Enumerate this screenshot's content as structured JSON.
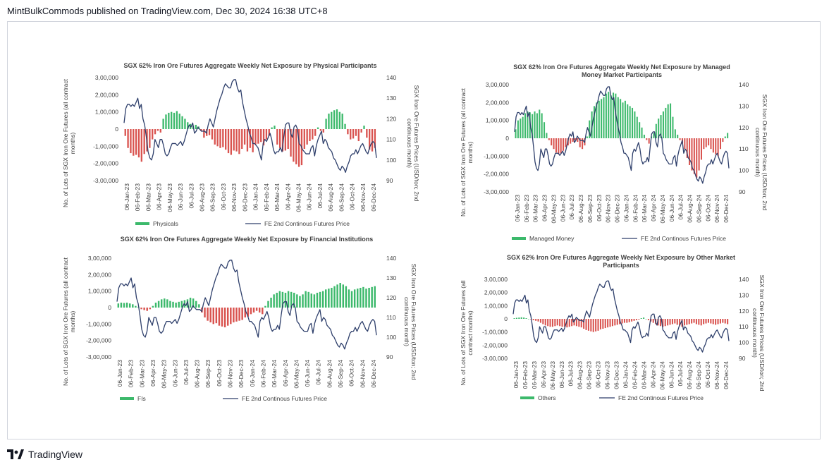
{
  "header": {
    "text": "MintBulkCommods published on TradingView.com, Dec 30, 2024 16:38 UTC+8"
  },
  "footer": {
    "brand": "TradingView",
    "logo_icon": "tradingview-logo-icon"
  },
  "colors": {
    "positive": "#3cb96b",
    "negative": "#d9534f",
    "line": "#2e3f6b",
    "text": "#404040"
  },
  "chart_data": [
    {
      "type": "bar+line",
      "title": [
        "SGX 62% Iron Ore Futures Aggregate Weekly Net Exposure by Physical Participants"
      ],
      "ylabel": [
        "No. of Lots of SGX Iron Ore Futures (all contract",
        "months)"
      ],
      "y2label": [
        "SGX Iron Ore Futures Prices (USD/ton; 2nd",
        "continuous month)"
      ],
      "yticks": [
        "3,00,000",
        "2,00,000",
        "1,00,000",
        "0",
        "-1,00,000",
        "-2,00,000",
        "-3,00,000"
      ],
      "ylim": [
        -300000,
        300000
      ],
      "y2ticks": [
        "140",
        "130",
        "120",
        "110",
        "100",
        "90"
      ],
      "y2lim": [
        90,
        140
      ],
      "xticks": [
        "06-Jan-23",
        "06-Feb-23",
        "06-Mar-23",
        "06-Apr-23",
        "06-May-23",
        "06-Jun-23",
        "06-Jul-23",
        "06-Aug-23",
        "06-Sep-23",
        "06-Oct-23",
        "06-Nov-23",
        "06-Dec-23",
        "06-Jan-24",
        "06-Feb-24",
        "06-Mar-24",
        "06-Apr-24",
        "06-May-24",
        "06-Jun-24",
        "06-Jul-24",
        "06-Aug-24",
        "06-Sep-24",
        "06-Oct-24",
        "06-Nov-24",
        "06-Dec-24"
      ],
      "legend": [
        {
          "name": "Physicals",
          "kind": "bar"
        },
        {
          "name": "FE 2nd Continous Futures Price",
          "kind": "line"
        }
      ],
      "bars": [
        -40000,
        -110000,
        -140000,
        -155000,
        -150000,
        -165000,
        -190000,
        -145000,
        -130000,
        -110000,
        -60000,
        -30000,
        -10000,
        -20000,
        60000,
        85000,
        95000,
        100000,
        95000,
        105000,
        90000,
        75000,
        60000,
        40000,
        30000,
        20000,
        25000,
        15000,
        -10000,
        -50000,
        -40000,
        -35000,
        -60000,
        -90000,
        -100000,
        -110000,
        -105000,
        -120000,
        -140000,
        -150000,
        -125000,
        -130000,
        -145000,
        -115000,
        -90000,
        -130000,
        -110000,
        -135000,
        -90000,
        -85000,
        -75000,
        -95000,
        -60000,
        -40000,
        10000,
        20000,
        -90000,
        -110000,
        -130000,
        -125000,
        -115000,
        -160000,
        -190000,
        -205000,
        -220000,
        -210000,
        -115000,
        -90000,
        -70000,
        -60000,
        -40000,
        10000,
        -10000,
        -20000,
        60000,
        90000,
        100000,
        110000,
        115000,
        100000,
        90000,
        30000,
        -30000,
        -60000,
        -55000,
        -40000,
        -70000,
        -20000,
        20000,
        -50000,
        -120000,
        -130000,
        -110000
      ],
      "price": [
        118,
        125,
        127,
        127,
        126,
        127,
        126,
        128,
        130,
        125,
        127,
        120,
        117,
        111,
        104,
        101,
        100,
        103,
        110,
        108,
        106,
        110,
        110,
        107,
        103,
        102,
        103,
        106,
        108,
        108,
        108,
        107,
        108,
        109,
        107,
        109,
        112,
        115,
        117,
        116,
        118,
        113,
        114,
        116,
        115,
        114,
        114,
        114,
        113,
        117,
        120,
        118,
        116,
        120,
        124,
        127,
        130,
        132,
        135,
        137,
        136,
        135,
        135,
        138,
        139,
        139,
        135,
        133,
        134,
        128,
        124,
        120,
        117,
        113,
        111,
        108,
        108,
        107,
        106,
        103,
        100,
        108,
        110,
        109,
        111,
        113,
        110,
        105,
        103,
        104,
        104,
        106,
        104,
        111,
        117,
        118,
        118,
        113,
        111,
        116,
        117,
        115,
        108,
        107,
        105,
        104,
        103,
        103,
        103,
        106,
        107,
        102,
        107,
        110,
        112,
        114,
        108,
        110,
        109,
        106,
        105,
        104,
        101,
        100,
        98,
        96,
        95,
        97,
        96,
        94,
        97,
        99,
        102,
        103,
        103,
        105,
        103,
        105,
        107,
        108,
        106,
        104,
        103,
        106,
        108,
        109,
        108,
        101
      ]
    },
    {
      "type": "bar+line",
      "title": [
        "SGX 62% Iron Ore Futures Aggregate Weekly Net Exposure by Managed",
        "Money Market Participants"
      ],
      "ylabel": [
        "No. of Lots of SGX Iron Ore Futures (all contract",
        "months)"
      ],
      "y2label": [
        "SGX Iron Ore Futures Prices (USD/ton; 2nd",
        "continuous month)"
      ],
      "yticks": [
        "3,00,000",
        "2,00,000",
        "1,00,000",
        "0",
        "-1,00,000",
        "-2,00,000",
        "-3,00,000"
      ],
      "ylim": [
        -300000,
        300000
      ],
      "y2ticks": [
        "140",
        "130",
        "120",
        "110",
        "100",
        "90"
      ],
      "y2lim": [
        90,
        140
      ],
      "xticks": [
        "06-Jan-23",
        "06-Feb-23",
        "06-Mar-23",
        "06-Apr-23",
        "06-May-23",
        "06-Jun-23",
        "06-Jul-23",
        "06-Aug-23",
        "06-Sep-23",
        "06-Oct-23",
        "06-Nov-23",
        "06-Dec-23",
        "06-Jan-24",
        "06-Feb-24",
        "06-Mar-24",
        "06-Apr-24",
        "06-May-24",
        "06-Jun-24",
        "06-Jul-24",
        "06-Aug-24",
        "06-Sep-24",
        "06-Oct-24",
        "06-Nov-24",
        "06-Dec-24"
      ],
      "legend": [
        {
          "name": "Managed Money",
          "kind": "bar"
        },
        {
          "name": "FE 2nd Continous Futures Price",
          "kind": "line"
        }
      ],
      "bars": [
        50000,
        100000,
        110000,
        120000,
        140000,
        150000,
        145000,
        135000,
        150000,
        140000,
        160000,
        140000,
        90000,
        30000,
        -10000,
        -40000,
        -60000,
        -80000,
        -90000,
        -85000,
        -70000,
        -50000,
        -40000,
        -30000,
        -20000,
        -10000,
        -20000,
        -50000,
        -60000,
        -40000,
        10000,
        100000,
        150000,
        180000,
        200000,
        210000,
        220000,
        230000,
        250000,
        260000,
        240000,
        255000,
        250000,
        230000,
        220000,
        200000,
        210000,
        190000,
        180000,
        170000,
        150000,
        120000,
        90000,
        60000,
        20000,
        -10000,
        -30000,
        10000,
        30000,
        80000,
        110000,
        130000,
        150000,
        170000,
        190000,
        195000,
        120000,
        50000,
        20000,
        -10000,
        -30000,
        -60000,
        -110000,
        -150000,
        -180000,
        -200000,
        -220000,
        -180000,
        -120000,
        -60000,
        -50000,
        -40000,
        -60000,
        -80000,
        -90000,
        -100000,
        -60000,
        -20000,
        10000,
        30000
      ],
      "price": [
        118,
        125,
        127,
        127,
        126,
        127,
        126,
        128,
        130,
        125,
        127,
        120,
        117,
        111,
        104,
        101,
        100,
        103,
        110,
        108,
        106,
        110,
        110,
        107,
        103,
        102,
        103,
        106,
        108,
        108,
        108,
        107,
        108,
        109,
        107,
        109,
        112,
        115,
        117,
        116,
        118,
        113,
        114,
        116,
        115,
        114,
        114,
        114,
        113,
        117,
        120,
        118,
        116,
        120,
        124,
        127,
        130,
        132,
        135,
        137,
        136,
        135,
        135,
        138,
        139,
        139,
        135,
        133,
        134,
        128,
        124,
        120,
        117,
        113,
        111,
        108,
        108,
        107,
        106,
        103,
        100,
        108,
        110,
        109,
        111,
        113,
        110,
        105,
        103,
        104,
        104,
        106,
        104,
        111,
        117,
        118,
        118,
        113,
        111,
        116,
        117,
        115,
        108,
        107,
        105,
        104,
        103,
        103,
        103,
        106,
        107,
        102,
        107,
        110,
        112,
        114,
        108,
        110,
        109,
        106,
        105,
        104,
        101,
        100,
        98,
        96,
        95,
        97,
        96,
        94,
        97,
        99,
        102,
        103,
        103,
        105,
        103,
        105,
        107,
        108,
        106,
        104,
        103,
        106,
        108,
        109,
        108,
        101
      ]
    },
    {
      "type": "bar+line",
      "title": [
        "SGX 62% Iron Ore Futures Aggregate Weekly Net Exposure by Financial Institutions"
      ],
      "ylabel": [
        "No. of Lots of SGX Iron Ore Futures (all contract",
        "months)"
      ],
      "y2label": [
        "SGX Iron Ore Futures Prices (USD/ton; 2nd",
        "continuous month)"
      ],
      "yticks": [
        "3,00,000",
        "2,00,000",
        "1,00,000",
        "0",
        "-1,00,000",
        "-2,00,000",
        "-3,00,000"
      ],
      "ylim": [
        -300000,
        300000
      ],
      "y2ticks": [
        "140",
        "130",
        "120",
        "110",
        "100",
        "90"
      ],
      "y2lim": [
        90,
        140
      ],
      "xticks": [
        "06-Jan-23",
        "06-Feb-23",
        "06-Mar-23",
        "06-Apr-23",
        "06-May-23",
        "06-Jun-23",
        "06-Jul-23",
        "06-Aug-23",
        "06-Sep-23",
        "06-Oct-23",
        "06-Nov-23",
        "06-Dec-23",
        "06-Jan-24",
        "06-Feb-24",
        "06-Mar-24",
        "06-Apr-24",
        "06-May-24",
        "06-Jun-24",
        "06-Jul-24",
        "06-Aug-24",
        "06-Sep-24",
        "06-Oct-24",
        "06-Nov-24",
        "06-Dec-24"
      ],
      "legend": [
        {
          "name": "FIs",
          "kind": "bar"
        },
        {
          "name": "FE 2nd Continous Futures Price",
          "kind": "line"
        }
      ],
      "bars": [
        25000,
        30000,
        28000,
        30000,
        25000,
        20000,
        10000,
        5000,
        -10000,
        -15000,
        -20000,
        -10000,
        10000,
        30000,
        40000,
        50000,
        55000,
        50000,
        40000,
        35000,
        30000,
        35000,
        40000,
        45000,
        50000,
        60000,
        55000,
        40000,
        20000,
        -30000,
        -60000,
        -80000,
        -90000,
        -100000,
        -95000,
        -110000,
        -115000,
        -120000,
        -110000,
        -100000,
        -90000,
        -85000,
        -80000,
        -75000,
        -60000,
        -55000,
        -40000,
        -30000,
        -20000,
        -30000,
        -40000,
        10000,
        40000,
        60000,
        80000,
        90000,
        100000,
        95000,
        90000,
        100000,
        95000,
        90000,
        80000,
        70000,
        80000,
        100000,
        95000,
        85000,
        80000,
        90000,
        95000,
        100000,
        110000,
        115000,
        120000,
        130000,
        140000,
        150000,
        140000,
        130000,
        110000,
        100000,
        110000,
        115000,
        120000,
        125000,
        115000,
        120000,
        125000,
        130000
      ],
      "price": [
        118,
        125,
        127,
        127,
        126,
        127,
        126,
        128,
        130,
        125,
        127,
        120,
        117,
        111,
        104,
        101,
        100,
        103,
        110,
        108,
        106,
        110,
        110,
        107,
        103,
        102,
        103,
        106,
        108,
        108,
        108,
        107,
        108,
        109,
        107,
        109,
        112,
        115,
        117,
        116,
        118,
        113,
        114,
        116,
        115,
        114,
        114,
        114,
        113,
        117,
        120,
        118,
        116,
        120,
        124,
        127,
        130,
        132,
        135,
        137,
        136,
        135,
        135,
        138,
        139,
        139,
        135,
        133,
        134,
        128,
        124,
        120,
        117,
        113,
        111,
        108,
        108,
        107,
        106,
        103,
        100,
        108,
        110,
        109,
        111,
        113,
        110,
        105,
        103,
        104,
        104,
        106,
        104,
        111,
        117,
        118,
        118,
        113,
        111,
        116,
        117,
        115,
        108,
        107,
        105,
        104,
        103,
        103,
        103,
        106,
        107,
        102,
        107,
        110,
        112,
        114,
        108,
        110,
        109,
        106,
        105,
        104,
        101,
        100,
        98,
        96,
        95,
        97,
        96,
        94,
        97,
        99,
        102,
        103,
        103,
        105,
        103,
        105,
        107,
        108,
        106,
        104,
        103,
        106,
        108,
        109,
        108,
        101
      ]
    },
    {
      "type": "bar+line",
      "title": [
        "SGX 62% Iron Ore Futures Aggregate Weekly Net Exposure by Other Market",
        "Participants"
      ],
      "ylabel": [
        "No. of Lots of SGX Iron Ore Futures (all",
        "contract months)"
      ],
      "y2label": [
        "SGX Iron Ore Futures Prices (USD/ton; 2nd",
        "continuous month)"
      ],
      "yticks": [
        "3,00,000",
        "2,00,000",
        "1,00,000",
        "0",
        "-1,00,000",
        "-2,00,000",
        "-3,00,000"
      ],
      "ylim": [
        -300000,
        300000
      ],
      "y2ticks": [
        "140",
        "130",
        "120",
        "110",
        "100",
        "90"
      ],
      "y2lim": [
        90,
        140
      ],
      "xticks": [
        "06-Jan-23",
        "06-Feb-23",
        "06-Mar-23",
        "06-Apr-23",
        "06-May-23",
        "06-Jun-23",
        "06-Jul-23",
        "06-Aug-23",
        "06-Sep-23",
        "06-Oct-23",
        "06-Nov-23",
        "06-Dec-23",
        "06-Jan-24",
        "06-Feb-24",
        "06-Mar-24",
        "06-Apr-24",
        "06-May-24",
        "06-Jun-24",
        "06-Jul-24",
        "06-Aug-24",
        "06-Sep-24",
        "06-Oct-24",
        "06-Nov-24",
        "06-Dec-24"
      ],
      "legend": [
        {
          "name": "Others",
          "kind": "bar"
        },
        {
          "name": "FE 2nd Continous Futures Price",
          "kind": "line"
        }
      ],
      "bars": [
        5000,
        8000,
        10000,
        12000,
        10000,
        5000,
        0,
        -5000,
        -10000,
        -15000,
        -20000,
        -30000,
        -40000,
        -50000,
        -55000,
        -60000,
        -60000,
        -55000,
        -50000,
        -55000,
        -60000,
        -60000,
        -65000,
        -60000,
        -55000,
        -50000,
        -55000,
        -60000,
        -65000,
        -75000,
        -85000,
        -90000,
        -95000,
        -100000,
        -95000,
        -90000,
        -80000,
        -75000,
        -70000,
        -65000,
        -60000,
        -55000,
        -50000,
        -45000,
        -40000,
        -35000,
        -30000,
        -30000,
        -25000,
        -20000,
        -15000,
        -10000,
        -5000,
        5000,
        10000,
        0,
        -10000,
        -20000,
        -30000,
        -40000,
        -50000,
        -55000,
        -60000,
        -55000,
        -50000,
        -45000,
        -40000,
        -35000,
        -45000,
        -50000,
        -60000,
        -50000,
        -45000,
        -40000,
        -35000,
        -30000,
        -40000,
        -45000,
        -50000,
        -40000,
        -35000,
        -30000,
        -35000,
        -40000,
        -45000,
        -40000,
        -35000,
        -30000,
        -35000,
        -40000
      ],
      "price": [
        118,
        125,
        127,
        127,
        126,
        127,
        126,
        128,
        130,
        125,
        127,
        120,
        117,
        111,
        104,
        101,
        100,
        103,
        110,
        108,
        106,
        110,
        110,
        107,
        103,
        102,
        103,
        106,
        108,
        108,
        108,
        107,
        108,
        109,
        107,
        109,
        112,
        115,
        117,
        116,
        118,
        113,
        114,
        116,
        115,
        114,
        114,
        114,
        113,
        117,
        120,
        118,
        116,
        120,
        124,
        127,
        130,
        132,
        135,
        137,
        136,
        135,
        135,
        138,
        139,
        139,
        135,
        133,
        134,
        128,
        124,
        120,
        117,
        113,
        111,
        108,
        108,
        107,
        106,
        103,
        100,
        108,
        110,
        109,
        111,
        113,
        110,
        105,
        103,
        104,
        104,
        106,
        104,
        111,
        117,
        118,
        118,
        113,
        111,
        116,
        117,
        115,
        108,
        107,
        105,
        104,
        103,
        103,
        103,
        106,
        107,
        102,
        107,
        110,
        112,
        114,
        108,
        110,
        109,
        106,
        105,
        104,
        101,
        100,
        98,
        96,
        95,
        97,
        96,
        94,
        97,
        99,
        102,
        103,
        103,
        105,
        103,
        105,
        107,
        108,
        106,
        104,
        103,
        106,
        108,
        109,
        108,
        101
      ]
    }
  ]
}
